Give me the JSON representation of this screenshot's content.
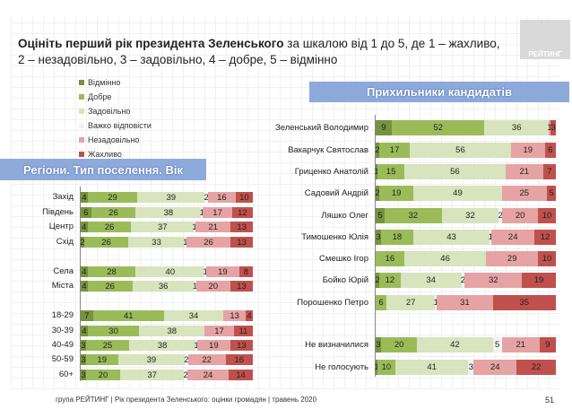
{
  "title": {
    "bold": "Оцініть перший рік президента Зеленського",
    "rest": " за шкалою від 1 до 5, де 1 – жахливо, 2 – незадовільно, 3 – задовільно, 4 – добре, 5 – відмінно"
  },
  "logo": "РЕЙТИНГ",
  "footer": "група РЕЙТИНГ |  Рік президента Зеленського: оцінки громадян | травень 2020",
  "page_number": "51",
  "legend": [
    {
      "label": "Відмінно",
      "color": "#77933c"
    },
    {
      "label": "Добре",
      "color": "#9bbb59"
    },
    {
      "label": "Задовільно",
      "color": "#d7e4bd"
    },
    {
      "label": "Важко відповісти",
      "color": "#f2f2f2"
    },
    {
      "label": "Незадовільно",
      "color": "#e6a3a3"
    },
    {
      "label": "Жахливо",
      "color": "#c0504d"
    }
  ],
  "chart_data": [
    {
      "type": "bar",
      "orientation": "horizontal-stacked-100",
      "title": "Регіони. Тип поселення. Вік",
      "series_order": [
        "Відмінно",
        "Добре",
        "Задовільно",
        "Важко відповісти",
        "Незадовільно",
        "Жахливо"
      ],
      "categories": [
        "Захід",
        "Південь",
        "Центр",
        "Схід",
        "Села",
        "Міста",
        "18-29",
        "30-39",
        "40-49",
        "50-59",
        "60+"
      ],
      "values": [
        [
          4,
          29,
          39,
          2,
          16,
          10
        ],
        [
          6,
          26,
          38,
          1,
          17,
          12
        ],
        [
          4,
          26,
          37,
          1,
          21,
          13
        ],
        [
          2,
          26,
          33,
          1,
          26,
          13
        ],
        [
          4,
          28,
          40,
          1,
          19,
          8
        ],
        [
          4,
          26,
          36,
          1,
          20,
          13
        ],
        [
          7,
          41,
          34,
          0,
          13,
          4
        ],
        [
          4,
          30,
          38,
          0,
          17,
          11
        ],
        [
          3,
          25,
          38,
          1,
          19,
          13
        ],
        [
          3,
          19,
          39,
          2,
          22,
          16
        ],
        [
          3,
          20,
          37,
          2,
          24,
          14
        ]
      ]
    },
    {
      "type": "bar",
      "orientation": "horizontal-stacked-100",
      "title": "Прихильники кандидатів",
      "series_order": [
        "Відмінно",
        "Добре",
        "Задовільно",
        "Важко відповісти",
        "Незадовільно",
        "Жахливо"
      ],
      "categories": [
        "Зеленський Володимир",
        "Вакарчук Святослав",
        "Гриценко Анатолій",
        "Садовий Андрій",
        "Ляшко Олег",
        "Тимошенко Юлія",
        "Смешко Ігор",
        "Бойко Юрій",
        "Порошенко Петро",
        "Не визначилися",
        "Не голосують"
      ],
      "values": [
        [
          9,
          52,
          36,
          0,
          1,
          3
        ],
        [
          2,
          17,
          56,
          0,
          19,
          6
        ],
        [
          1,
          15,
          56,
          0,
          21,
          7
        ],
        [
          2,
          19,
          49,
          0,
          25,
          5
        ],
        [
          5,
          32,
          32,
          2,
          20,
          10
        ],
        [
          3,
          18,
          43,
          1,
          24,
          12
        ],
        [
          0,
          16,
          46,
          0,
          29,
          10
        ],
        [
          2,
          12,
          34,
          2,
          32,
          19
        ],
        [
          0,
          6,
          27,
          1,
          31,
          35
        ],
        [
          3,
          20,
          42,
          5,
          21,
          9
        ],
        [
          1,
          10,
          41,
          3,
          24,
          22
        ]
      ]
    }
  ]
}
